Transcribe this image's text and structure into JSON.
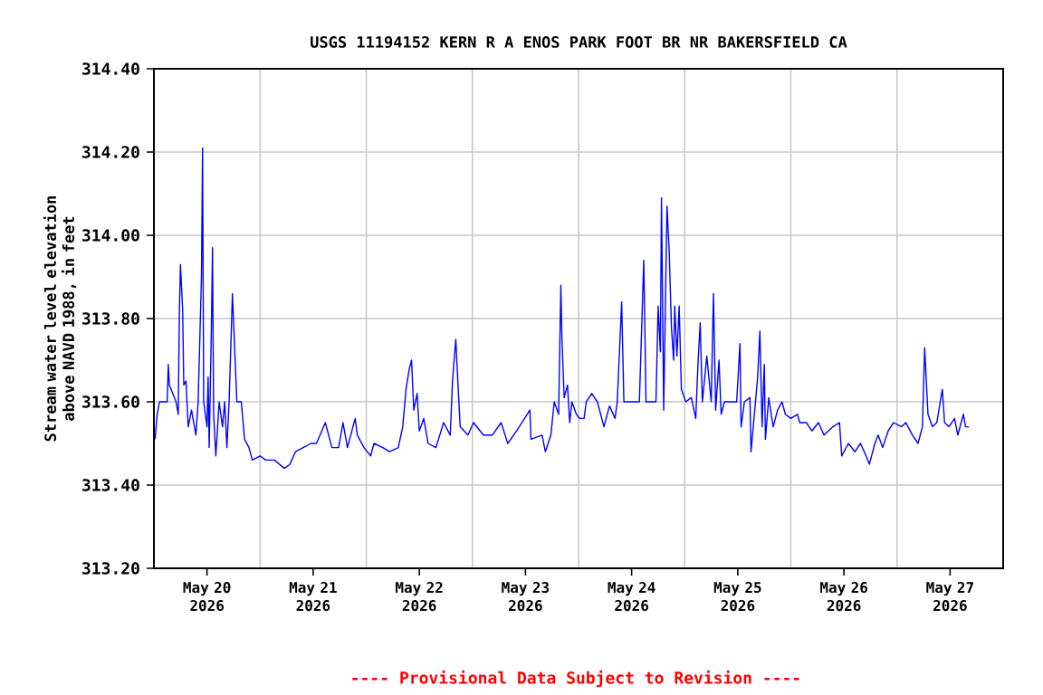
{
  "chart_data": {
    "type": "line",
    "title": "USGS 11194152 KERN R A ENOS PARK FOOT BR NR BAKERSFIELD CA",
    "ylabel": "Stream water level elevation above NAVD 1988, in feet",
    "annotations": [
      "---- Provisional Data Subject to Revision ----"
    ],
    "xlim": [
      "2026-05-19T12:00",
      "2026-05-27T12:00"
    ],
    "xticks": [
      {
        "value": "2026-05-20",
        "label": "May 20 2026"
      },
      {
        "value": "2026-05-21",
        "label": "May 21 2026"
      },
      {
        "value": "2026-05-22",
        "label": "May 22 2026"
      },
      {
        "value": "2026-05-23",
        "label": "May 23 2026"
      },
      {
        "value": "2026-05-24",
        "label": "May 24 2026"
      },
      {
        "value": "2026-05-25",
        "label": "May 25 2026"
      },
      {
        "value": "2026-05-26",
        "label": "May 26 2026"
      },
      {
        "value": "2026-05-27",
        "label": "May 27 2026"
      },
      {
        "value": "2026-05-20T12:00",
        "label": null
      },
      {
        "value": "2026-05-21T12:00",
        "label": null
      },
      {
        "value": "2026-05-22T12:00",
        "label": null
      },
      {
        "value": "2026-05-23T12:00",
        "label": null
      },
      {
        "value": "2026-05-24T12:00",
        "label": null
      },
      {
        "value": "2026-05-25T12:00",
        "label": null
      },
      {
        "value": "2026-05-26T12:00",
        "label": null
      }
    ],
    "ylim": [
      313.2,
      314.4
    ],
    "yticks": [
      {
        "value": 313.2,
        "label": "313.20"
      },
      {
        "value": 313.4,
        "label": "313.40"
      },
      {
        "value": 313.6,
        "label": "313.60"
      },
      {
        "value": 313.8,
        "label": "313.80"
      },
      {
        "value": 314.0,
        "label": "314.00"
      },
      {
        "value": 314.2,
        "label": "314.20"
      },
      {
        "value": 314.4,
        "label": "314.40"
      }
    ],
    "grid": true,
    "line_style": "solid",
    "marker": "none",
    "series": [
      {
        "color": "#0000ff",
        "x": [
          "2026-05-19T12:15",
          "2026-05-19T12:45",
          "2026-05-19T13:15",
          "2026-05-19T15:00",
          "2026-05-19T15:15",
          "2026-05-19T15:30",
          "2026-05-19T17:00",
          "2026-05-19T17:30",
          "2026-05-19T17:45",
          "2026-05-19T18:00",
          "2026-05-19T18:30",
          "2026-05-19T18:45",
          "2026-05-19T19:15",
          "2026-05-19T19:45",
          "2026-05-19T20:30",
          "2026-05-19T21:30",
          "2026-05-19T22:00",
          "2026-05-19T22:45",
          "2026-05-19T23:00",
          "2026-05-19T23:15",
          "2026-05-20T00:00",
          "2026-05-20T00:15",
          "2026-05-20T00:30",
          "2026-05-20T01:00",
          "2026-05-20T01:15",
          "2026-05-20T01:30",
          "2026-05-20T02:00",
          "2026-05-20T02:45",
          "2026-05-20T03:30",
          "2026-05-20T04:00",
          "2026-05-20T04:30",
          "2026-05-20T05:00",
          "2026-05-20T05:45",
          "2026-05-20T06:15",
          "2026-05-20T06:45",
          "2026-05-20T07:45",
          "2026-05-20T08:30",
          "2026-05-20T09:30",
          "2026-05-20T10:15",
          "2026-05-20T12:00",
          "2026-05-20T13:15",
          "2026-05-20T15:15",
          "2026-05-20T17:30",
          "2026-05-20T18:45",
          "2026-05-20T20:00",
          "2026-05-20T21:45",
          "2026-05-20T23:30",
          "2026-05-21T00:45",
          "2026-05-21T02:45",
          "2026-05-21T04:15",
          "2026-05-21T05:45",
          "2026-05-21T06:45",
          "2026-05-21T07:45",
          "2026-05-21T09:30",
          "2026-05-21T10:00",
          "2026-05-21T11:30",
          "2026-05-21T13:00",
          "2026-05-21T13:45",
          "2026-05-21T15:45",
          "2026-05-21T17:15",
          "2026-05-21T19:15",
          "2026-05-21T20:15",
          "2026-05-21T21:00",
          "2026-05-21T21:45",
          "2026-05-21T22:15",
          "2026-05-21T22:45",
          "2026-05-21T23:30",
          "2026-05-22T00:00",
          "2026-05-22T01:00",
          "2026-05-22T02:00",
          "2026-05-22T03:45",
          "2026-05-22T05:30",
          "2026-05-22T07:00",
          "2026-05-22T07:30",
          "2026-05-22T08:15",
          "2026-05-22T08:45",
          "2026-05-22T09:15",
          "2026-05-22T11:00",
          "2026-05-22T12:15",
          "2026-05-22T14:30",
          "2026-05-22T16:30",
          "2026-05-22T18:30",
          "2026-05-22T20:00",
          "2026-05-22T22:00",
          "2026-05-23T01:00",
          "2026-05-23T01:15",
          "2026-05-23T03:45",
          "2026-05-23T04:30",
          "2026-05-23T05:45",
          "2026-05-23T06:30",
          "2026-05-23T07:30",
          "2026-05-23T08:00",
          "2026-05-23T08:15",
          "2026-05-23T08:45",
          "2026-05-23T09:30",
          "2026-05-23T10:00",
          "2026-05-23T10:30",
          "2026-05-23T11:30",
          "2026-05-23T12:15",
          "2026-05-23T13:15",
          "2026-05-23T13:45",
          "2026-05-23T15:00",
          "2026-05-23T16:15",
          "2026-05-23T17:00",
          "2026-05-23T17:45",
          "2026-05-23T19:00",
          "2026-05-23T20:15",
          "2026-05-23T20:45",
          "2026-05-23T21:45",
          "2026-05-23T22:15",
          "2026-05-24T01:45",
          "2026-05-24T02:15",
          "2026-05-24T02:45",
          "2026-05-24T03:15",
          "2026-05-24T05:30",
          "2026-05-24T06:00",
          "2026-05-24T06:30",
          "2026-05-24T06:45",
          "2026-05-24T07:15",
          "2026-05-24T08:00",
          "2026-05-24T08:30",
          "2026-05-24T09:00",
          "2026-05-24T09:30",
          "2026-05-24T09:45",
          "2026-05-24T10:15",
          "2026-05-24T10:45",
          "2026-05-24T11:15",
          "2026-05-24T12:15",
          "2026-05-24T13:30",
          "2026-05-24T14:30",
          "2026-05-24T15:00",
          "2026-05-24T15:30",
          "2026-05-24T16:00",
          "2026-05-24T17:00",
          "2026-05-24T18:00",
          "2026-05-24T18:30",
          "2026-05-24T19:00",
          "2026-05-24T19:45",
          "2026-05-24T20:15",
          "2026-05-24T21:00",
          "2026-05-24T23:45",
          "2026-05-25T00:30",
          "2026-05-25T00:45",
          "2026-05-25T01:30",
          "2026-05-25T02:45",
          "2026-05-25T03:00",
          "2026-05-25T04:00",
          "2026-05-25T04:30",
          "2026-05-25T05:00",
          "2026-05-25T05:30",
          "2026-05-25T06:00",
          "2026-05-25T06:15",
          "2026-05-25T07:00",
          "2026-05-25T08:00",
          "2026-05-25T09:00",
          "2026-05-25T10:00",
          "2026-05-25T10:45",
          "2026-05-25T12:00",
          "2026-05-25T13:30",
          "2026-05-25T14:00",
          "2026-05-25T15:30",
          "2026-05-25T16:45",
          "2026-05-25T18:15",
          "2026-05-25T19:30",
          "2026-05-25T21:30",
          "2026-05-25T23:00",
          "2026-05-25T23:30",
          "2026-05-26T01:00",
          "2026-05-26T02:30",
          "2026-05-26T03:45",
          "2026-05-26T05:00",
          "2026-05-26T05:45",
          "2026-05-26T07:00",
          "2026-05-26T07:45",
          "2026-05-26T08:45",
          "2026-05-26T10:00",
          "2026-05-26T11:15",
          "2026-05-26T13:00",
          "2026-05-26T14:00",
          "2026-05-26T15:30",
          "2026-05-26T16:45",
          "2026-05-26T17:45",
          "2026-05-26T18:15",
          "2026-05-26T19:00",
          "2026-05-26T20:00",
          "2026-05-26T21:00",
          "2026-05-26T22:15",
          "2026-05-26T22:45",
          "2026-05-26T23:45",
          "2026-05-27T01:00",
          "2026-05-27T01:45",
          "2026-05-27T03:00",
          "2026-05-27T03:30",
          "2026-05-27T04:15"
        ],
        "values": [
          313.51,
          313.57,
          313.6,
          313.6,
          313.69,
          313.64,
          313.6,
          313.57,
          313.81,
          313.93,
          313.82,
          313.64,
          313.65,
          313.54,
          313.58,
          313.52,
          313.6,
          313.9,
          314.21,
          313.6,
          313.54,
          313.66,
          313.49,
          313.78,
          313.97,
          313.57,
          313.47,
          313.6,
          313.54,
          313.6,
          313.49,
          313.6,
          313.86,
          313.73,
          313.6,
          313.6,
          313.51,
          313.49,
          313.46,
          313.47,
          313.46,
          313.46,
          313.44,
          313.45,
          313.48,
          313.49,
          313.5,
          313.5,
          313.55,
          313.49,
          313.49,
          313.55,
          313.49,
          313.56,
          313.52,
          313.49,
          313.47,
          313.5,
          313.49,
          313.48,
          313.49,
          313.54,
          313.63,
          313.68,
          313.7,
          313.58,
          313.62,
          313.53,
          313.56,
          313.5,
          313.49,
          313.55,
          313.52,
          313.65,
          313.75,
          313.64,
          313.54,
          313.52,
          313.55,
          313.52,
          313.52,
          313.55,
          313.5,
          313.53,
          313.58,
          313.51,
          313.52,
          313.48,
          313.52,
          313.6,
          313.57,
          313.88,
          313.75,
          313.61,
          313.64,
          313.55,
          313.6,
          313.57,
          313.56,
          313.56,
          313.6,
          313.62,
          313.6,
          313.57,
          313.54,
          313.59,
          313.56,
          313.6,
          313.84,
          313.6,
          313.6,
          313.77,
          313.94,
          313.6,
          313.6,
          313.83,
          313.72,
          314.09,
          313.58,
          314.07,
          313.96,
          313.78,
          313.7,
          313.83,
          313.71,
          313.83,
          313.63,
          313.6,
          313.61,
          313.56,
          313.69,
          313.79,
          313.6,
          313.71,
          313.6,
          313.86,
          313.58,
          313.7,
          313.57,
          313.6,
          313.6,
          313.74,
          313.54,
          313.6,
          313.61,
          313.48,
          313.6,
          313.66,
          313.77,
          313.54,
          313.69,
          313.51,
          313.61,
          313.54,
          313.58,
          313.6,
          313.57,
          313.56,
          313.57,
          313.55,
          313.55,
          313.53,
          313.55,
          313.52,
          313.54,
          313.55,
          313.47,
          313.5,
          313.48,
          313.5,
          313.47,
          313.45,
          313.5,
          313.52,
          313.49,
          313.53,
          313.55,
          313.54,
          313.55,
          313.52,
          313.5,
          313.54,
          313.73,
          313.57,
          313.54,
          313.55,
          313.63,
          313.55,
          313.54,
          313.56,
          313.52,
          313.57,
          313.54,
          313.54
        ]
      }
    ]
  }
}
